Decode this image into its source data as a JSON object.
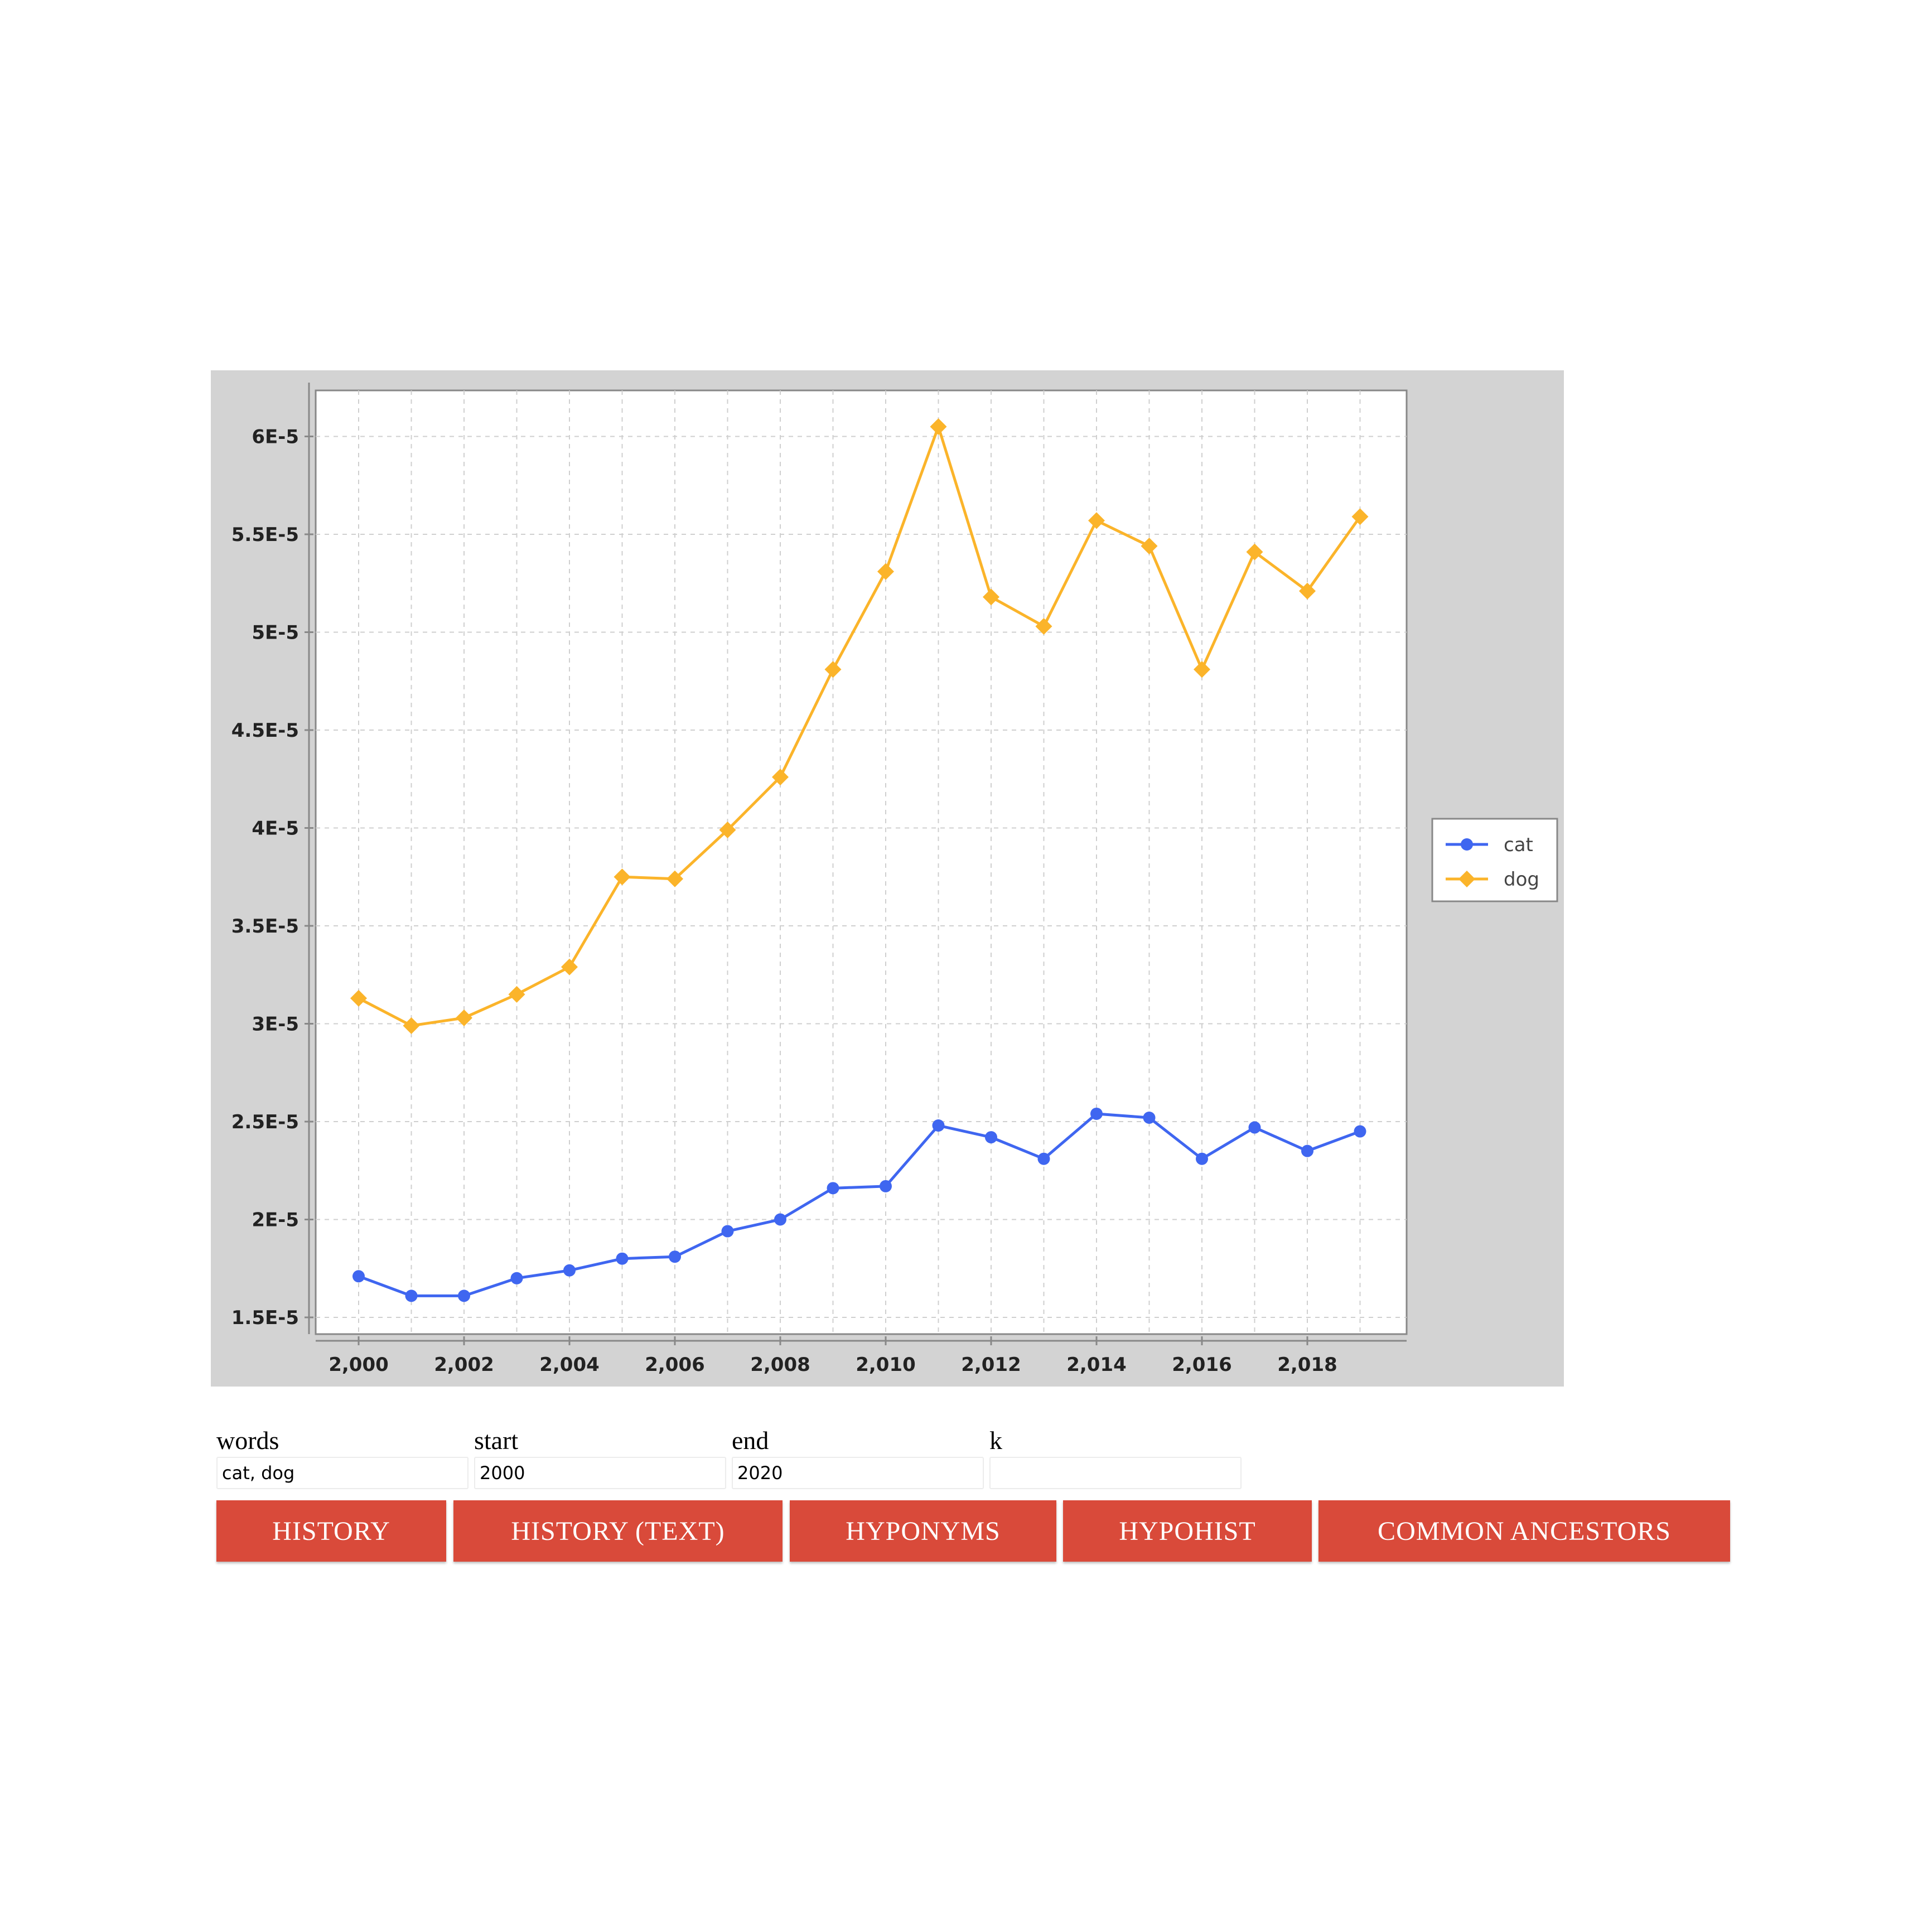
{
  "chart_data": {
    "type": "line",
    "x": [
      2000,
      2001,
      2002,
      2003,
      2004,
      2005,
      2006,
      2007,
      2008,
      2009,
      2010,
      2011,
      2012,
      2013,
      2014,
      2015,
      2016,
      2017,
      2018,
      2019
    ],
    "series": [
      {
        "name": "cat",
        "color": "#3f66f0",
        "marker": "circle",
        "values": [
          1.71e-05,
          1.61e-05,
          1.61e-05,
          1.7e-05,
          1.74e-05,
          1.8e-05,
          1.81e-05,
          1.94e-05,
          2e-05,
          2.16e-05,
          2.17e-05,
          2.48e-05,
          2.42e-05,
          2.31e-05,
          2.54e-05,
          2.52e-05,
          2.31e-05,
          2.47e-05,
          2.35e-05,
          2.45e-05
        ]
      },
      {
        "name": "dog",
        "color": "#fbb42a",
        "marker": "diamond",
        "values": [
          3.13e-05,
          2.99e-05,
          3.03e-05,
          3.15e-05,
          3.29e-05,
          3.75e-05,
          3.74e-05,
          3.99e-05,
          4.26e-05,
          4.81e-05,
          5.31e-05,
          6.05e-05,
          5.18e-05,
          5.03e-05,
          5.57e-05,
          5.44e-05,
          4.81e-05,
          5.41e-05,
          5.21e-05,
          5.59e-05
        ]
      }
    ],
    "x_ticks": [
      2000,
      2002,
      2004,
      2006,
      2008,
      2010,
      2012,
      2014,
      2016,
      2018
    ],
    "x_tick_labels": [
      "2,000",
      "2,002",
      "2,004",
      "2,006",
      "2,008",
      "2,010",
      "2,012",
      "2,014",
      "2,016",
      "2,018"
    ],
    "y_ticks": [
      1.5e-05,
      2e-05,
      2.5e-05,
      3e-05,
      3.5e-05,
      4e-05,
      4.5e-05,
      5e-05,
      5.5e-05,
      6e-05
    ],
    "y_tick_labels": [
      "1.5E-5",
      "2E-5",
      "2.5E-5",
      "3E-5",
      "3.5E-5",
      "4E-5",
      "4.5E-5",
      "5E-5",
      "5.5E-5",
      "6E-5"
    ],
    "grid": true,
    "legend": "right"
  },
  "form": {
    "fields": [
      {
        "label": "words",
        "value": "cat, dog",
        "placeholder": ""
      },
      {
        "label": "start",
        "value": "2000",
        "placeholder": ""
      },
      {
        "label": "end",
        "value": "2020",
        "placeholder": ""
      },
      {
        "label": "k",
        "value": "",
        "placeholder": ""
      }
    ]
  },
  "buttons": [
    {
      "label": "HISTORY"
    },
    {
      "label": "HISTORY (TEXT)"
    },
    {
      "label": "HYPONYMS"
    },
    {
      "label": "HYPOHIST"
    },
    {
      "label": "COMMON ANCESTORS"
    }
  ],
  "colors": {
    "button_bg": "#d94a3a",
    "chart_bg": "#d3d3d3"
  }
}
